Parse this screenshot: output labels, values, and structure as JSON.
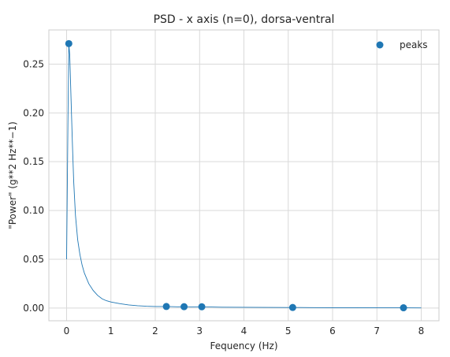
{
  "chart_data": {
    "type": "line",
    "title": "PSD - x axis (n=0), dorsa-ventral",
    "xlabel": "Fequency (Hz)",
    "ylabel": "\"Power\" (g**2 Hz**−1)",
    "xlim": [
      -0.4,
      8.4
    ],
    "ylim": [
      -0.013,
      0.285
    ],
    "xticks": [
      0,
      1,
      2,
      3,
      4,
      5,
      6,
      7,
      8
    ],
    "xtick_labels": [
      "0",
      "1",
      "2",
      "3",
      "4",
      "5",
      "6",
      "7",
      "8"
    ],
    "yticks": [
      0.0,
      0.05,
      0.1,
      0.15,
      0.2,
      0.25
    ],
    "ytick_labels": [
      "0.00",
      "0.05",
      "0.10",
      "0.15",
      "0.20",
      "0.25"
    ],
    "grid": true,
    "legend_position": "top-right",
    "series": [
      {
        "kind": "line",
        "color": "#1f77b4",
        "x": [
          0.0,
          0.03,
          0.05,
          0.07,
          0.1,
          0.13,
          0.16,
          0.2,
          0.25,
          0.3,
          0.35,
          0.4,
          0.5,
          0.6,
          0.7,
          0.8,
          0.9,
          1.0,
          1.2,
          1.4,
          1.6,
          1.8,
          2.0,
          2.25,
          2.5,
          2.65,
          2.8,
          3.05,
          3.5,
          4.0,
          4.5,
          5.0,
          5.1,
          5.5,
          6.0,
          6.5,
          7.0,
          7.6,
          8.0
        ],
        "y": [
          0.05,
          0.19,
          0.271,
          0.26,
          0.215,
          0.17,
          0.13,
          0.095,
          0.07,
          0.055,
          0.044,
          0.036,
          0.025,
          0.018,
          0.013,
          0.0095,
          0.0075,
          0.0062,
          0.0045,
          0.0032,
          0.0024,
          0.0019,
          0.0016,
          0.0016,
          0.0013,
          0.0014,
          0.0012,
          0.0013,
          0.0009,
          0.0008,
          0.0007,
          0.0006,
          0.0006,
          0.0005,
          0.0004,
          0.0004,
          0.0003,
          0.0003,
          0.0002
        ]
      },
      {
        "kind": "scatter",
        "name": "peaks",
        "color": "#1f77b4",
        "x": [
          0.05,
          2.25,
          2.65,
          3.05,
          5.1,
          7.6
        ],
        "y": [
          0.271,
          0.0016,
          0.0014,
          0.0013,
          0.0006,
          0.0003
        ]
      }
    ]
  }
}
